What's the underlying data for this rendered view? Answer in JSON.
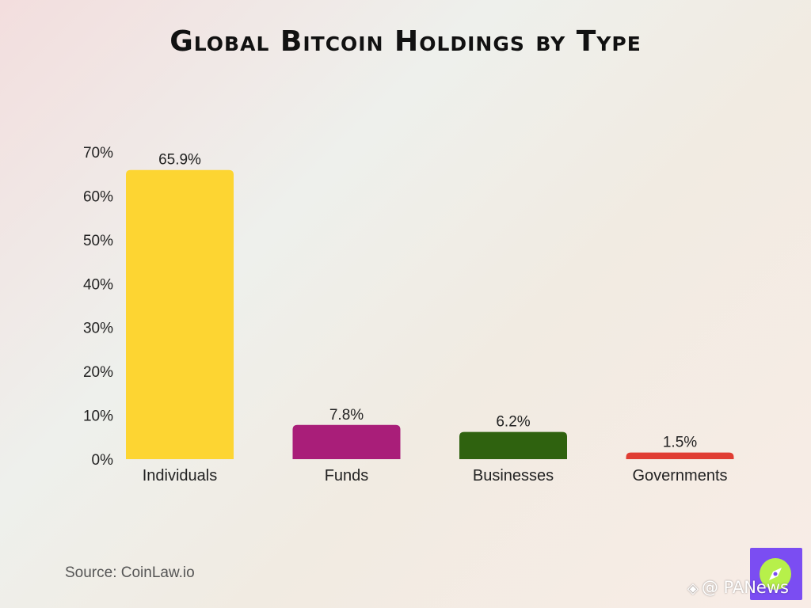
{
  "chart_data": {
    "type": "bar",
    "title": "Global Bitcoin Holdings by Type",
    "categories": [
      "Individuals",
      "Funds",
      "Businesses",
      "Governments"
    ],
    "values": [
      65.9,
      7.8,
      6.2,
      1.5
    ],
    "data_labels": [
      "65.9%",
      "7.8%",
      "6.2%",
      "1.5%"
    ],
    "colors": [
      "#fdd532",
      "#a91e79",
      "#2f620f",
      "#e03d33"
    ],
    "ylim": [
      0,
      70
    ],
    "yticks": [
      "0%",
      "10%",
      "20%",
      "30%",
      "40%",
      "50%",
      "60%",
      "70%"
    ],
    "xlabel": "",
    "ylabel": "",
    "grid": false,
    "legend": "none"
  },
  "source": "Source: CoinLaw.io",
  "watermark": {
    "text": "@ PANews",
    "icon": "diamond-icon",
    "logo_icon": "compass-icon",
    "logo_color": "#7b4df2",
    "logo_accent": "#b7f04a"
  }
}
